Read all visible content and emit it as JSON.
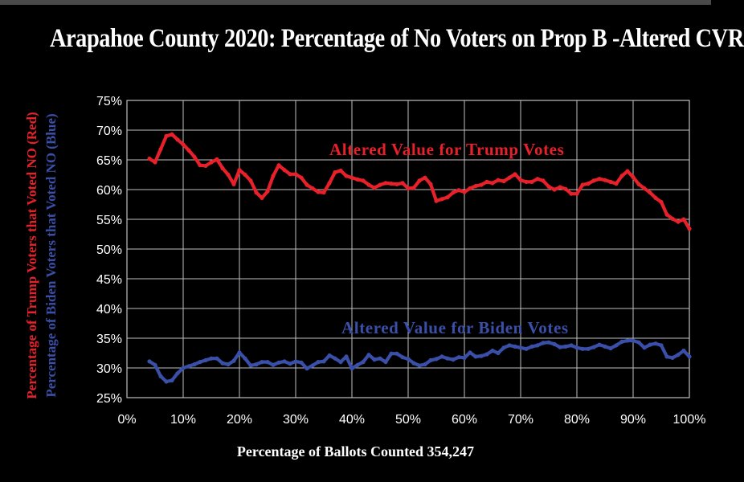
{
  "chart_data": {
    "type": "line",
    "title": "Arapahoe County 2020: Percentage of No Voters on Prop B -Altered CVR",
    "xlabel": "Percentage of Ballots Counted 354,247",
    "ylabel_trump": "Percentage of Trump Voters that Voted NO (Red)",
    "ylabel_biden": "Percentage of Biden Voters that Voted NO (Blue)",
    "xlim": [
      0,
      100
    ],
    "ylim": [
      25,
      75
    ],
    "x_ticks": [
      "0%",
      "10%",
      "20%",
      "30%",
      "40%",
      "50%",
      "60%",
      "70%",
      "80%",
      "90%",
      "100%"
    ],
    "y_ticks": [
      "75%",
      "70%",
      "65%",
      "60%",
      "55%",
      "50%",
      "45%",
      "40%",
      "35%",
      "30%",
      "25%"
    ],
    "grid": true,
    "colors": {
      "trump": "#e8202a",
      "biden": "#3a4fa8",
      "grid": "#bfbfbf",
      "text": "#ffffff"
    },
    "annotations": [
      {
        "text": "Altered Value for Trump Votes",
        "series": "Trump",
        "color": "#e8202a"
      },
      {
        "text": "Altered Value for Biden Votes",
        "series": "Biden",
        "color": "#3a4fa8"
      }
    ],
    "series": [
      {
        "name": "Trump",
        "color": "#e8202a",
        "x": [
          4,
          5,
          6,
          7,
          8,
          9,
          10,
          11,
          12,
          13,
          14,
          15,
          16,
          17,
          18,
          19,
          20,
          21,
          22,
          23,
          24,
          25,
          26,
          27,
          28,
          29,
          30,
          31,
          32,
          33,
          34,
          35,
          36,
          37,
          38,
          39,
          40,
          41,
          42,
          43,
          44,
          45,
          46,
          47,
          48,
          49,
          50,
          51,
          52,
          53,
          54,
          55,
          56,
          57,
          58,
          59,
          60,
          61,
          62,
          63,
          64,
          65,
          66,
          67,
          68,
          69,
          70,
          71,
          72,
          73,
          74,
          75,
          76,
          77,
          78,
          79,
          80,
          81,
          82,
          83,
          84,
          85,
          86,
          87,
          88,
          89,
          90,
          91,
          92,
          93,
          94,
          95,
          96,
          97,
          98,
          99,
          100
        ],
        "y": [
          65.2,
          64.6,
          66.8,
          69.0,
          69.3,
          68.4,
          67.6,
          66.6,
          65.5,
          64.1,
          64.0,
          64.6,
          65.1,
          63.6,
          62.5,
          60.9,
          63.3,
          62.5,
          61.5,
          59.5,
          58.6,
          59.7,
          62.3,
          64.1,
          63.3,
          62.6,
          62.6,
          62.0,
          60.8,
          60.2,
          59.6,
          59.5,
          61.1,
          62.9,
          63.2,
          62.3,
          62.0,
          61.7,
          61.5,
          60.8,
          60.3,
          60.8,
          61.1,
          61.0,
          60.9,
          61.1,
          60.2,
          60.3,
          61.5,
          62.0,
          60.9,
          58.1,
          58.4,
          58.7,
          59.5,
          59.9,
          59.6,
          60.2,
          60.6,
          60.8,
          61.3,
          61.1,
          61.6,
          61.4,
          62.0,
          62.6,
          61.6,
          61.3,
          61.3,
          61.8,
          61.5,
          60.5,
          60.0,
          60.4,
          60.1,
          59.3,
          59.3,
          60.8,
          61.0,
          61.5,
          61.8,
          61.6,
          61.3,
          61.0,
          62.3,
          63.1,
          62.1,
          60.9,
          60.2,
          59.5,
          58.6,
          57.9,
          55.8,
          55.1,
          54.6,
          55.0,
          53.4
        ]
      },
      {
        "name": "Biden",
        "color": "#3a4fa8",
        "x": [
          4,
          5,
          6,
          7,
          8,
          9,
          10,
          11,
          12,
          13,
          14,
          15,
          16,
          17,
          18,
          19,
          20,
          21,
          22,
          23,
          24,
          25,
          26,
          27,
          28,
          29,
          30,
          31,
          32,
          33,
          34,
          35,
          36,
          37,
          38,
          39,
          40,
          41,
          42,
          43,
          44,
          45,
          46,
          47,
          48,
          49,
          50,
          51,
          52,
          53,
          54,
          55,
          56,
          57,
          58,
          59,
          60,
          61,
          62,
          63,
          64,
          65,
          66,
          67,
          68,
          69,
          70,
          71,
          72,
          73,
          74,
          75,
          76,
          77,
          78,
          79,
          80,
          81,
          82,
          83,
          84,
          85,
          86,
          87,
          88,
          89,
          90,
          91,
          92,
          93,
          94,
          95,
          96,
          97,
          98,
          99,
          100
        ],
        "y": [
          31.1,
          30.5,
          28.6,
          27.7,
          27.9,
          29.1,
          30.0,
          30.3,
          30.6,
          31.0,
          31.3,
          31.6,
          31.6,
          30.8,
          30.6,
          31.2,
          32.6,
          31.6,
          30.4,
          30.6,
          31.0,
          31.0,
          30.5,
          30.9,
          31.1,
          30.7,
          31.1,
          30.9,
          29.9,
          30.4,
          31.0,
          31.1,
          32.1,
          31.6,
          31.0,
          31.9,
          29.9,
          30.5,
          31.0,
          32.2,
          31.4,
          31.6,
          31.0,
          32.4,
          32.4,
          31.8,
          31.5,
          30.8,
          30.4,
          30.6,
          31.3,
          31.5,
          31.9,
          31.6,
          31.4,
          31.8,
          31.7,
          32.6,
          31.9,
          32.0,
          32.3,
          32.9,
          32.5,
          33.4,
          33.8,
          33.6,
          33.4,
          33.2,
          33.6,
          33.8,
          34.2,
          34.3,
          34.0,
          33.5,
          33.6,
          33.8,
          33.4,
          33.2,
          33.2,
          33.5,
          33.9,
          33.6,
          33.3,
          33.8,
          34.4,
          34.6,
          34.6,
          34.3,
          33.4,
          33.9,
          34.1,
          33.8,
          31.9,
          31.7,
          32.2,
          32.9,
          31.9
        ]
      }
    ]
  }
}
